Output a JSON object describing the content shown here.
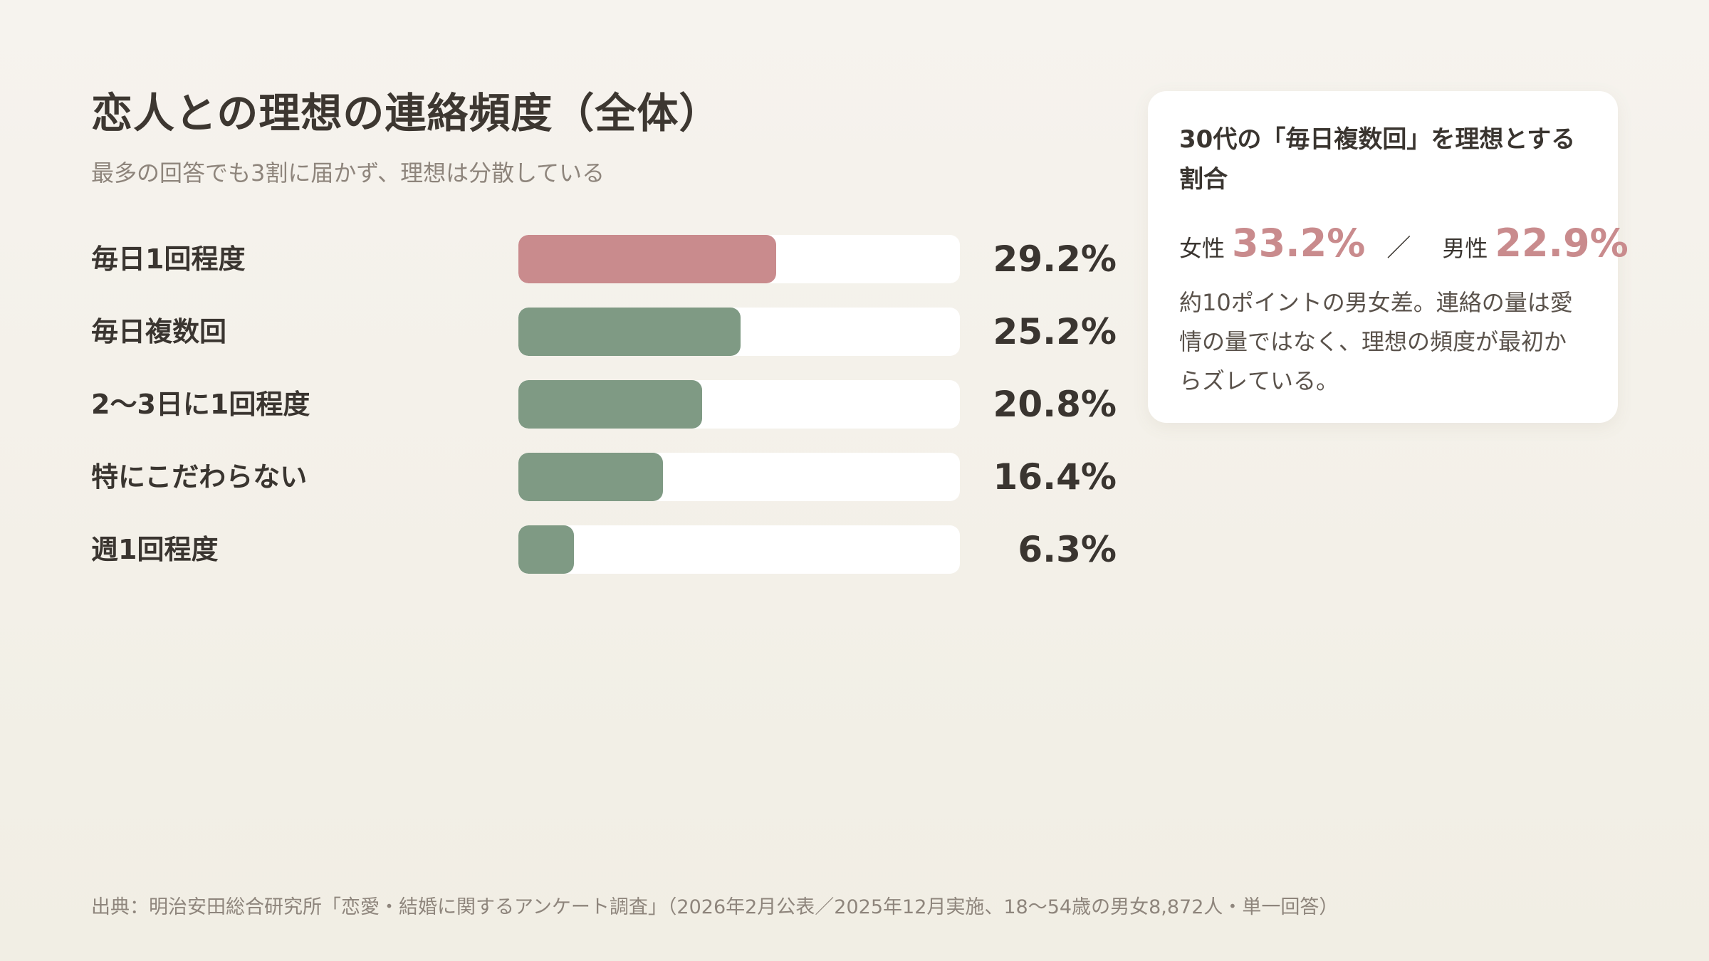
{
  "title": "恋人との理想の連絡頻度（全体）",
  "subtitle": "最多の回答でも3割に届かず、理想は分散している",
  "colors": {
    "highlight": "#c98b8d",
    "default": "#7f9a84",
    "track": "#ffffff"
  },
  "chart_data": {
    "type": "bar",
    "orientation": "horizontal",
    "categories": [
      "毎日1回程度",
      "毎日複数回",
      "2〜3日に1回程度",
      "特にこだわらない",
      "週1回程度"
    ],
    "values": [
      29.2,
      25.2,
      20.8,
      16.4,
      6.3
    ],
    "value_labels": [
      "29.2%",
      "25.2%",
      "20.8%",
      "16.4%",
      "6.3%"
    ],
    "highlight_index": 0,
    "xlim": [
      0,
      50
    ],
    "unit": "%"
  },
  "card": {
    "title": "30代の「毎日複数回」を理想とする割合",
    "female_label": "女性",
    "female_value": "33.2%",
    "separator": "／",
    "male_label": "男性",
    "male_value": "22.9%",
    "note": "約10ポイントの男女差。連絡の量は愛情の量ではなく、理想の頻度が最初からズレている。"
  },
  "source": "出典：明治安田総合研究所「恋愛・結婚に関するアンケート調査」（2026年2月公表／2025年12月実施、18〜54歳の男女8,872人・単一回答）"
}
